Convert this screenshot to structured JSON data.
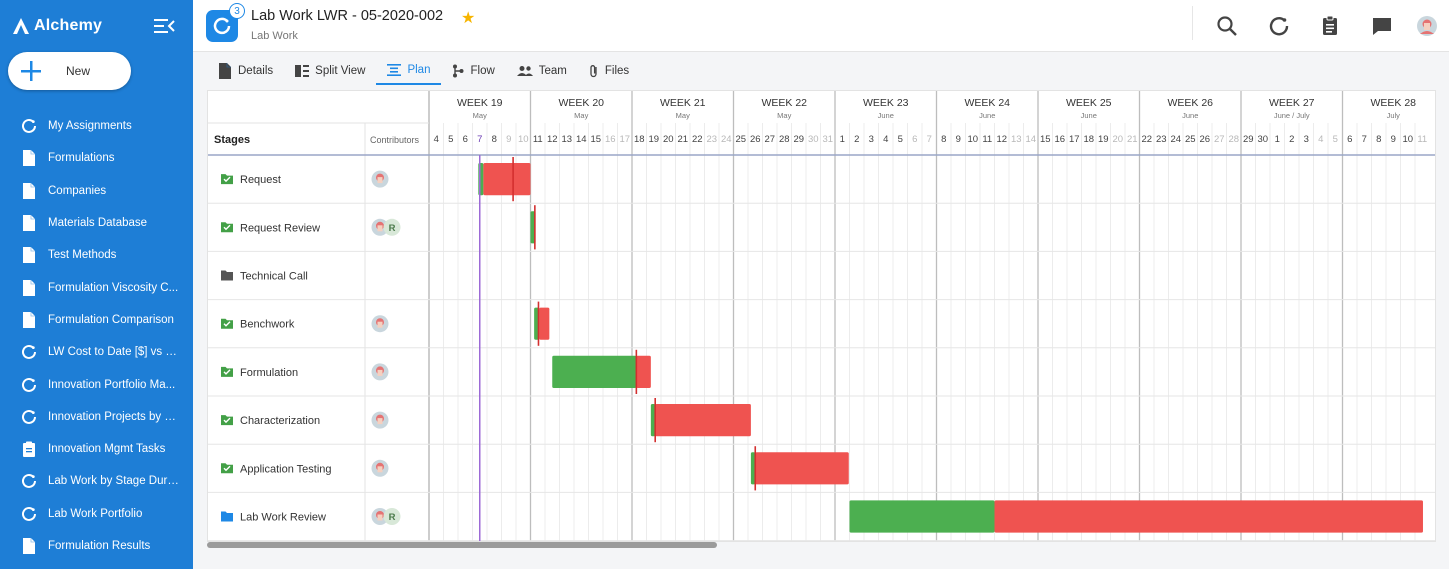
{
  "app": {
    "name": "Alchemy",
    "new_label": "New"
  },
  "nav": [
    {
      "label": "My Assignments",
      "icon": "refresh-icon"
    },
    {
      "label": "Formulations",
      "icon": "document-icon"
    },
    {
      "label": "Companies",
      "icon": "document-icon"
    },
    {
      "label": "Materials Database",
      "icon": "document-icon"
    },
    {
      "label": "Test Methods",
      "icon": "document-icon"
    },
    {
      "label": "Formulation Viscosity C...",
      "icon": "document-icon"
    },
    {
      "label": "Formulation Comparison",
      "icon": "document-icon"
    },
    {
      "label": "LW Cost to Date [$] vs E...",
      "icon": "refresh-icon"
    },
    {
      "label": "Innovation Portfolio Ma...",
      "icon": "refresh-icon"
    },
    {
      "label": "Innovation Projects by L...",
      "icon": "refresh-icon"
    },
    {
      "label": "Innovation Mgmt Tasks",
      "icon": "clipboard-icon"
    },
    {
      "label": "Lab Work by Stage Dura...",
      "icon": "refresh-icon"
    },
    {
      "label": "Lab Work Portfolio",
      "icon": "refresh-icon"
    },
    {
      "label": "Formulation Results",
      "icon": "document-icon"
    }
  ],
  "header": {
    "title": "Lab Work LWR - 05-2020-002",
    "subtitle": "Lab Work",
    "badge": "3"
  },
  "tabs": [
    {
      "label": "Details",
      "icon": "document-icon",
      "active": false
    },
    {
      "label": "Split View",
      "icon": "split-view-icon",
      "active": false
    },
    {
      "label": "Plan",
      "icon": "plan-icon",
      "active": true
    },
    {
      "label": "Flow",
      "icon": "flow-icon",
      "active": false
    },
    {
      "label": "Team",
      "icon": "team-icon",
      "active": false
    },
    {
      "label": "Files",
      "icon": "paperclip-icon",
      "active": false
    }
  ],
  "gantt": {
    "stages_header": "Stages",
    "contributors_header": "Contributors",
    "weeks": [
      {
        "label": "WEEK 19",
        "month": "May"
      },
      {
        "label": "WEEK 20",
        "month": "May"
      },
      {
        "label": "WEEK 21",
        "month": "May"
      },
      {
        "label": "WEEK 22",
        "month": "May"
      },
      {
        "label": "WEEK 23",
        "month": "June"
      },
      {
        "label": "WEEK 24",
        "month": "June"
      },
      {
        "label": "WEEK 25",
        "month": "June"
      },
      {
        "label": "WEEK 26",
        "month": "June"
      },
      {
        "label": "WEEK 27",
        "month": "June / July"
      },
      {
        "label": "WEEK 28",
        "month": "July"
      }
    ],
    "days": [
      4,
      5,
      6,
      7,
      8,
      9,
      10,
      11,
      12,
      13,
      14,
      15,
      16,
      17,
      18,
      19,
      20,
      21,
      22,
      23,
      24,
      25,
      26,
      27,
      28,
      29,
      30,
      31,
      1,
      2,
      3,
      4,
      5,
      6,
      7,
      8,
      9,
      10,
      11,
      12,
      13,
      14,
      15,
      16,
      17,
      18,
      19,
      20,
      21,
      22,
      23,
      24,
      25,
      26,
      27,
      28,
      29,
      30,
      1,
      2,
      3,
      4,
      5,
      6,
      7,
      8,
      9,
      10,
      11
    ],
    "today_index": 3,
    "colors": {
      "green": "#4caf50",
      "red": "#ef5350",
      "today": "#9c6ad6",
      "folder_green": "#43a047",
      "folder_gray": "#555555",
      "folder_blue": "#1e88e5"
    },
    "stages": [
      {
        "name": "Request",
        "folder": "green",
        "contributors": [
          "avatar"
        ],
        "green": [
          3.4,
          3.75
        ],
        "red": [
          3.75,
          7
        ],
        "marker": 5.8
      },
      {
        "name": "Request Review",
        "folder": "green",
        "contributors": [
          "avatar",
          "R"
        ],
        "green": [
          7.0,
          7.35
        ],
        "red": null,
        "marker": 7.3
      },
      {
        "name": "Technical Call",
        "folder": "gray",
        "contributors": [],
        "green": null,
        "red": null,
        "marker": null
      },
      {
        "name": "Benchwork",
        "folder": "green",
        "contributors": [
          "avatar"
        ],
        "green": [
          7.25,
          7.6
        ],
        "red": [
          7.6,
          8.3
        ],
        "marker": 7.55
      },
      {
        "name": "Formulation",
        "folder": "green",
        "contributors": [
          "avatar"
        ],
        "green": [
          8.5,
          14.3
        ],
        "red": [
          14.3,
          15.3
        ],
        "marker": 14.3
      },
      {
        "name": "Characterization",
        "folder": "green",
        "contributors": [
          "avatar"
        ],
        "green": [
          15.3,
          15.6
        ],
        "red": [
          15.6,
          22.2
        ],
        "marker": 15.6
      },
      {
        "name": "Application Testing",
        "folder": "green",
        "contributors": [
          "avatar"
        ],
        "green": [
          22.2,
          22.5
        ],
        "red": [
          22.5,
          28.95
        ],
        "marker": 22.5
      },
      {
        "name": "Lab Work Review",
        "folder": "blue",
        "contributors": [
          "avatar",
          "R"
        ],
        "green": [
          29,
          39
        ],
        "red": [
          39,
          68.55
        ],
        "marker": null
      }
    ]
  }
}
